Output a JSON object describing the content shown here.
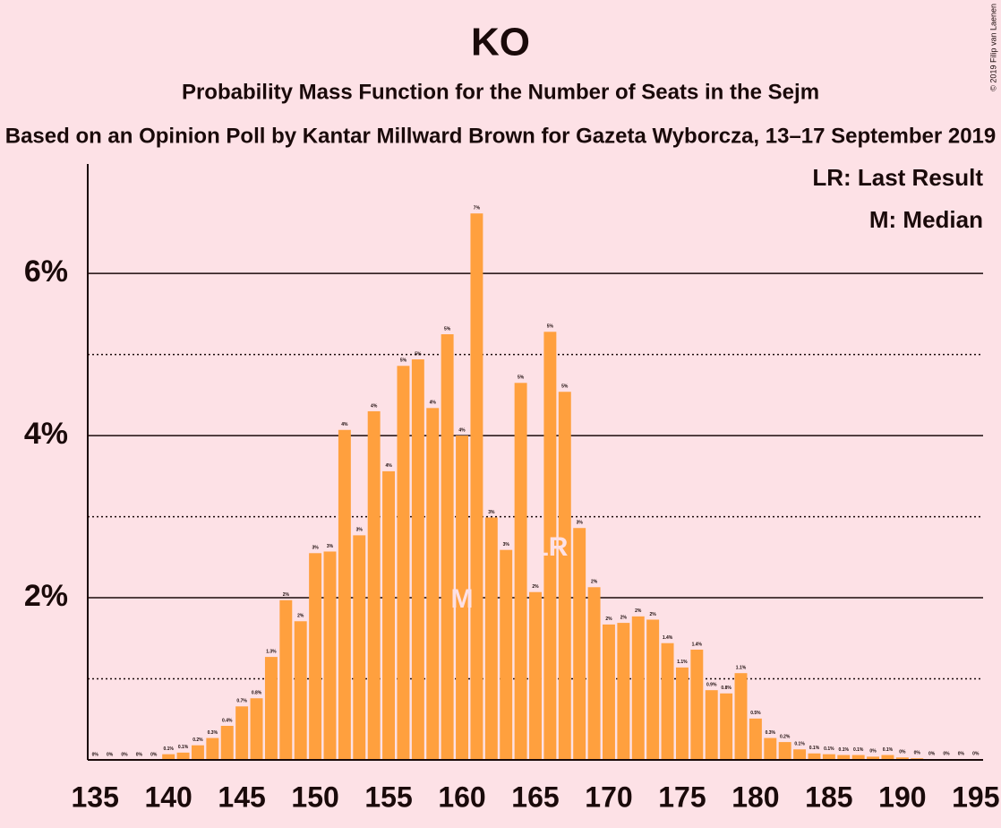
{
  "chart_data": {
    "type": "bar",
    "title": "KO",
    "subtitle": "Probability Mass Function for the Number of Seats in the Sejm",
    "subtitle2": "Based on an Opinion Poll by Kantar Millward Brown for Gazeta Wyborcza, 13–17 September 2019",
    "copyright": "© 2019 Filip van Laenen",
    "legend": [
      "LR: Last Result",
      "M: Median"
    ],
    "x": [
      135,
      136,
      137,
      138,
      139,
      140,
      141,
      142,
      143,
      144,
      145,
      146,
      147,
      148,
      149,
      150,
      151,
      152,
      153,
      154,
      155,
      156,
      157,
      158,
      159,
      160,
      161,
      162,
      163,
      164,
      165,
      166,
      167,
      168,
      169,
      170,
      171,
      172,
      173,
      174,
      175,
      176,
      177,
      178,
      179,
      180,
      181,
      182,
      183,
      184,
      185,
      186,
      187,
      188,
      189,
      190,
      191,
      192,
      193,
      194,
      195
    ],
    "values": [
      0,
      0,
      0,
      0,
      0,
      0.07,
      0.09,
      0.18,
      0.27,
      0.42,
      0.66,
      0.76,
      1.27,
      1.97,
      1.71,
      2.55,
      2.57,
      4.07,
      2.77,
      4.3,
      3.56,
      4.86,
      4.94,
      4.34,
      5.25,
      4.0,
      6.74,
      2.99,
      2.59,
      4.65,
      2.07,
      5.28,
      4.54,
      2.86,
      2.13,
      1.67,
      1.69,
      1.77,
      1.73,
      1.44,
      1.14,
      1.36,
      0.86,
      0.82,
      1.07,
      0.51,
      0.27,
      0.22,
      0.13,
      0.08,
      0.07,
      0.06,
      0.06,
      0.04,
      0.06,
      0.03,
      0.02,
      0.01,
      0.01,
      0.01,
      0.01
    ],
    "value_labels": [
      "0%",
      "0%",
      "0%",
      "0%",
      "0%",
      "0.1%",
      "0.1%",
      "0.2%",
      "0.3%",
      "0.4%",
      "0.7%",
      "0.8%",
      "1.3%",
      "2%",
      "2%",
      "3%",
      "3%",
      "4%",
      "3%",
      "4%",
      "4%",
      "5%",
      "5%",
      "4%",
      "5%",
      "4%",
      "7%",
      "3%",
      "3%",
      "5%",
      "2%",
      "5%",
      "5%",
      "3%",
      "2%",
      "2%",
      "2%",
      "2%",
      "2%",
      "1.4%",
      "1.1%",
      "1.4%",
      "0.9%",
      "0.8%",
      "1.1%",
      "0.5%",
      "0.3%",
      "0.2%",
      "0.1%",
      "0.1%",
      "0.1%",
      "0.1%",
      "0.1%",
      "0%",
      "0.1%",
      "0%",
      "0%",
      "0%",
      "0%",
      "0%",
      "0%"
    ],
    "color": "#ffa03e",
    "annotations": [
      {
        "x": 160,
        "label": "M"
      },
      {
        "x": 166,
        "label": "LR"
      }
    ],
    "xlim": [
      134.5,
      195.5
    ],
    "xticks": [
      135,
      140,
      145,
      150,
      155,
      160,
      165,
      170,
      175,
      180,
      185,
      190,
      195
    ],
    "ylim": [
      0,
      7.35
    ],
    "yticks": [
      {
        "value": 2,
        "label": "2%"
      },
      {
        "value": 4,
        "label": "4%"
      },
      {
        "value": 6,
        "label": "6%"
      }
    ],
    "minor_yticks": [
      1,
      3,
      5
    ],
    "grid": true
  }
}
